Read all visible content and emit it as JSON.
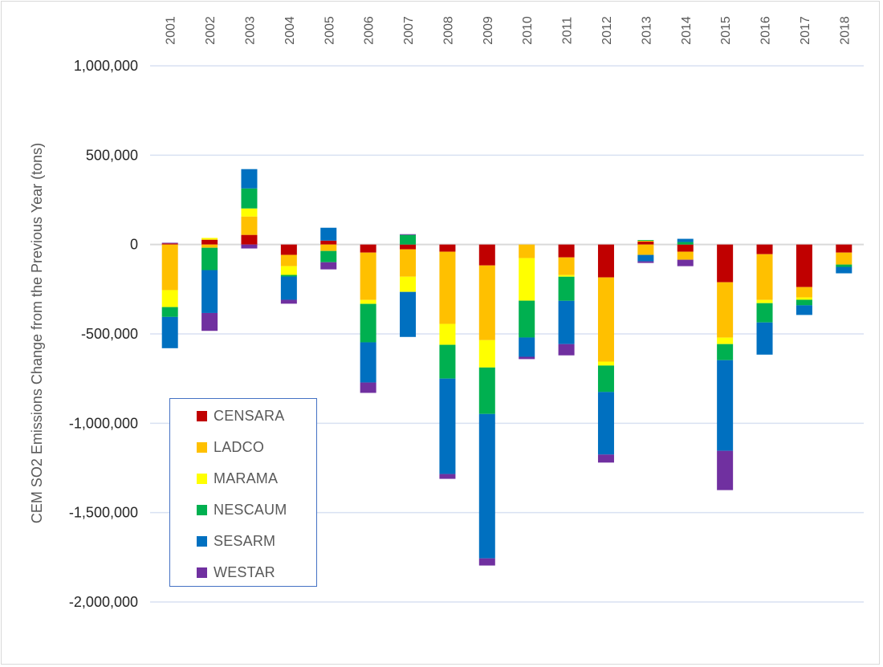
{
  "chart_data": {
    "type": "bar",
    "stacked": true,
    "title": "",
    "xlabel": "",
    "ylabel": "CEM SO2 Emissions Change from the Previous Year (tons)",
    "x_axis_position": "top",
    "ylim": [
      -2000000,
      1000000
    ],
    "yticks": [
      1000000,
      500000,
      0,
      -500000,
      -1000000,
      -1500000,
      -2000000
    ],
    "ytick_labels": [
      "1,000,000",
      "500,000",
      "0",
      "-500,000",
      "-1,000,000",
      "-1,500,000",
      "-2,000,000"
    ],
    "grid": true,
    "legend_position": "bottom-left",
    "categories": [
      "2001",
      "2002",
      "2003",
      "2004",
      "2005",
      "2006",
      "2007",
      "2008",
      "2009",
      "2010",
      "2011",
      "2012",
      "2013",
      "2014",
      "2015",
      "2016",
      "2017",
      "2018"
    ],
    "series": [
      {
        "name": "CENSARA",
        "color": "#c00000",
        "values": [
          6000,
          27000,
          54000,
          -58000,
          22000,
          -45000,
          -27000,
          -40000,
          -117000,
          0,
          -72000,
          -184000,
          18000,
          -40000,
          -211000,
          -54000,
          -238000,
          -45000
        ]
      },
      {
        "name": "LADCO",
        "color": "#ffc000",
        "values": [
          -255000,
          -18000,
          103000,
          -63000,
          -36000,
          -265000,
          -153000,
          -404000,
          -418000,
          -76000,
          -99000,
          -471000,
          -58000,
          -45000,
          -310000,
          -256000,
          -58000,
          -67000
        ]
      },
      {
        "name": "MARAMA",
        "color": "#ffff00",
        "values": [
          -95000,
          10000,
          45000,
          -49000,
          0,
          -22000,
          -85000,
          -117000,
          -153000,
          -238000,
          -9000,
          -22000,
          3000,
          0,
          -36000,
          -18000,
          -13000,
          0
        ]
      },
      {
        "name": "NESCAUM",
        "color": "#00b050",
        "values": [
          -55000,
          -125000,
          112000,
          -9000,
          -63000,
          -215000,
          54000,
          -189000,
          -260000,
          -206000,
          -135000,
          -148000,
          4000,
          14000,
          -90000,
          -108000,
          -31000,
          -13000
        ]
      },
      {
        "name": "SESARM",
        "color": "#0070c0",
        "values": [
          -175000,
          -240000,
          108000,
          -130000,
          72000,
          -225000,
          -252000,
          -534000,
          -808000,
          -108000,
          -242000,
          -350000,
          -36000,
          18000,
          -507000,
          -180000,
          -54000,
          -36000
        ]
      },
      {
        "name": "WESTAR",
        "color": "#7030a0",
        "values": [
          4000,
          -100000,
          -22000,
          -22000,
          -40000,
          -58000,
          4000,
          -27000,
          -40000,
          -13000,
          -63000,
          -45000,
          -9000,
          -36000,
          -220000,
          0,
          0,
          0
        ]
      }
    ]
  }
}
